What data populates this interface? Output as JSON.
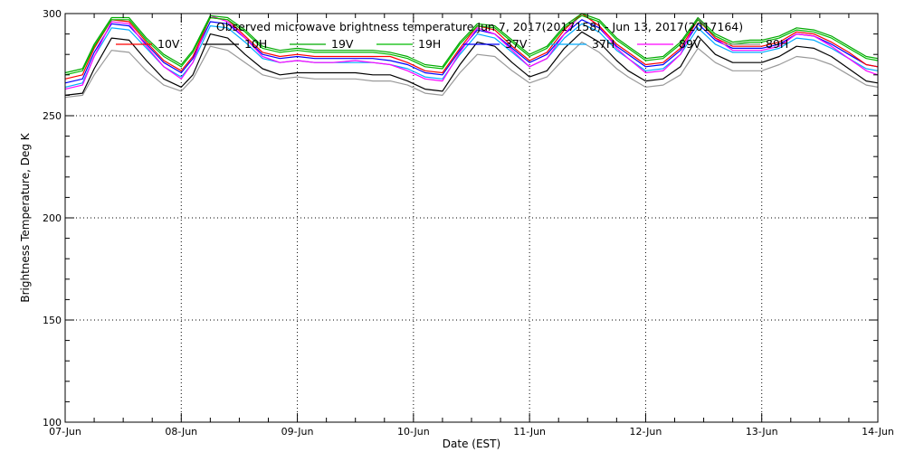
{
  "chart_data": {
    "type": "line",
    "title": "Observed microwave brightness temperature  Jun  7, 2017(2017158) - Jun 13, 2017(2017164)",
    "xlabel": "Date (EST)",
    "ylabel": "Brightness Temperature, Deg K",
    "ylim": [
      100,
      300
    ],
    "xlim": [
      0,
      7
    ],
    "y_ticks": [
      100,
      150,
      200,
      250,
      300
    ],
    "y_tick_labels": [
      "100",
      "150",
      "200",
      "250",
      "300"
    ],
    "x_ticks": [
      0,
      1,
      2,
      3,
      4,
      5,
      6,
      7
    ],
    "x_tick_labels": [
      "07-Jun",
      "08-Jun",
      "09-Jun",
      "10-Jun",
      "11-Jun",
      "12-Jun",
      "13-Jun",
      "14-Jun"
    ],
    "grid": true,
    "legend_position": "top, inside plot",
    "x": [
      0,
      0.15,
      0.25,
      0.4,
      0.55,
      0.7,
      0.85,
      1.0,
      1.1,
      1.25,
      1.4,
      1.55,
      1.7,
      1.85,
      2.0,
      2.15,
      2.3,
      2.5,
      2.65,
      2.8,
      2.95,
      3.1,
      3.25,
      3.4,
      3.55,
      3.7,
      3.85,
      4.0,
      4.15,
      4.3,
      4.45,
      4.6,
      4.75,
      4.85,
      5.0,
      5.15,
      5.3,
      5.45,
      5.6,
      5.75,
      5.9,
      6.0,
      6.15,
      6.3,
      6.45,
      6.6,
      6.75,
      6.9,
      7.0
    ],
    "series": [
      {
        "name": "10V",
        "color": "#ff0000",
        "values": [
          268,
          270,
          283,
          297,
          296,
          286,
          277,
          272,
          279,
          298,
          297,
          289,
          281,
          279,
          280,
          279,
          279,
          279,
          279,
          279,
          276,
          272,
          271,
          283,
          294,
          292,
          284,
          277,
          281,
          292,
          300,
          294,
          285,
          281,
          275,
          276,
          283,
          297,
          288,
          284,
          284,
          284,
          286,
          291,
          290,
          286,
          281,
          275,
          274
        ]
      },
      {
        "name": "10H",
        "color": "#000000",
        "values": [
          260,
          261,
          273,
          288,
          287,
          277,
          268,
          264,
          270,
          290,
          288,
          280,
          273,
          270,
          271,
          271,
          271,
          271,
          270,
          270,
          267,
          263,
          262,
          275,
          286,
          284,
          276,
          269,
          272,
          283,
          291,
          286,
          277,
          272,
          267,
          268,
          274,
          289,
          280,
          276,
          276,
          276,
          279,
          284,
          283,
          279,
          273,
          267,
          266
        ]
      },
      {
        "name": "19V",
        "color": "#00aa00",
        "values": [
          271,
          273,
          285,
          298,
          298,
          288,
          280,
          275,
          282,
          299,
          298,
          292,
          284,
          282,
          283,
          282,
          282,
          282,
          282,
          281,
          279,
          275,
          274,
          286,
          295,
          294,
          287,
          280,
          284,
          294,
          300,
          297,
          288,
          284,
          278,
          279,
          286,
          298,
          290,
          286,
          287,
          287,
          289,
          293,
          292,
          289,
          284,
          279,
          278
        ]
      },
      {
        "name": "19H",
        "color": "#00bb00",
        "values": [
          270,
          272,
          284,
          297,
          297,
          287,
          279,
          274,
          281,
          298,
          297,
          291,
          283,
          281,
          282,
          281,
          281,
          281,
          281,
          280,
          278,
          274,
          273,
          285,
          294,
          293,
          286,
          279,
          283,
          293,
          299,
          296,
          287,
          283,
          277,
          278,
          285,
          297,
          289,
          285,
          286,
          286,
          288,
          292,
          291,
          288,
          283,
          278,
          277
        ]
      },
      {
        "name": "37V",
        "color": "#0000ff",
        "values": [
          266,
          268,
          281,
          295,
          294,
          285,
          276,
          271,
          278,
          296,
          295,
          288,
          280,
          278,
          279,
          278,
          278,
          278,
          278,
          277,
          275,
          271,
          270,
          282,
          292,
          290,
          283,
          276,
          280,
          290,
          297,
          293,
          284,
          280,
          274,
          275,
          282,
          295,
          287,
          283,
          283,
          283,
          285,
          290,
          289,
          285,
          280,
          275,
          274
        ]
      },
      {
        "name": "37H",
        "color": "#00aaff",
        "values": [
          264,
          266,
          279,
          293,
          292,
          283,
          274,
          269,
          276,
          294,
          293,
          286,
          278,
          276,
          277,
          276,
          276,
          276,
          276,
          275,
          273,
          269,
          268,
          280,
          290,
          288,
          281,
          274,
          278,
          288,
          295,
          291,
          282,
          278,
          272,
          273,
          280,
          293,
          285,
          281,
          281,
          281,
          283,
          288,
          287,
          283,
          278,
          273,
          272
        ]
      },
      {
        "name": "89V",
        "color": "#ff00ff",
        "values": [
          263,
          265,
          279,
          296,
          295,
          284,
          274,
          268,
          276,
          299,
          296,
          288,
          279,
          276,
          277,
          276,
          276,
          277,
          276,
          275,
          272,
          268,
          267,
          281,
          293,
          290,
          282,
          274,
          278,
          290,
          300,
          294,
          283,
          278,
          271,
          272,
          280,
          298,
          288,
          282,
          282,
          282,
          284,
          290,
          289,
          284,
          278,
          272,
          270
        ]
      },
      {
        "name": "89H",
        "color": "#999999",
        "values": [
          259,
          260,
          270,
          282,
          281,
          272,
          265,
          262,
          268,
          284,
          282,
          276,
          270,
          268,
          269,
          268,
          268,
          268,
          267,
          267,
          265,
          261,
          260,
          271,
          280,
          279,
          272,
          266,
          269,
          278,
          286,
          281,
          273,
          269,
          264,
          265,
          270,
          283,
          276,
          272,
          272,
          272,
          275,
          279,
          278,
          275,
          270,
          265,
          264
        ]
      }
    ]
  }
}
